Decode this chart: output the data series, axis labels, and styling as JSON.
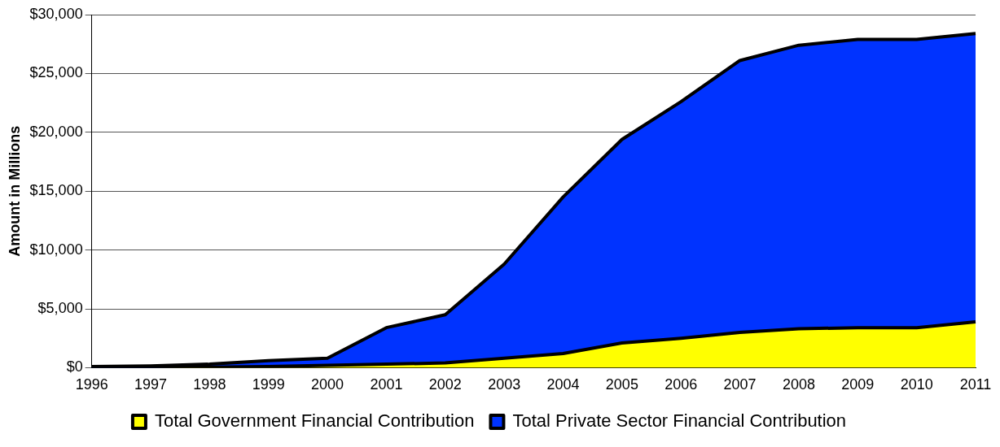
{
  "chart_data": {
    "type": "area",
    "stacked": true,
    "ylabel": "Amount in Millions",
    "categories": [
      "1996",
      "1997",
      "1998",
      "1999",
      "2000",
      "2001",
      "2002",
      "2003",
      "2004",
      "2005",
      "2006",
      "2007",
      "2008",
      "2009",
      "2010",
      "2011"
    ],
    "series": [
      {
        "name": "Total Government Financial Contribution",
        "color": "#ffff00",
        "values": [
          0,
          0,
          50,
          100,
          200,
          300,
          400,
          800,
          1200,
          2100,
          2500,
          3000,
          3300,
          3400,
          3400,
          3900
        ]
      },
      {
        "name": "Total Private Sector Financial Contribution",
        "color": "#0033ff",
        "values": [
          100,
          150,
          250,
          500,
          600,
          3100,
          4100,
          8000,
          13300,
          17300,
          20100,
          23100,
          24100,
          24500,
          24500,
          24500
        ]
      }
    ],
    "ylim": [
      0,
      30000
    ],
    "yticks": [
      {
        "value": 0,
        "label": "$0"
      },
      {
        "value": 5000,
        "label": "$5,000"
      },
      {
        "value": 10000,
        "label": "$10,000"
      },
      {
        "value": 15000,
        "label": "$15,000"
      },
      {
        "value": 20000,
        "label": "$20,000"
      },
      {
        "value": 25000,
        "label": "$25,000"
      },
      {
        "value": 30000,
        "label": "$30,000"
      }
    ],
    "grid": "y",
    "legend": "bottom"
  }
}
